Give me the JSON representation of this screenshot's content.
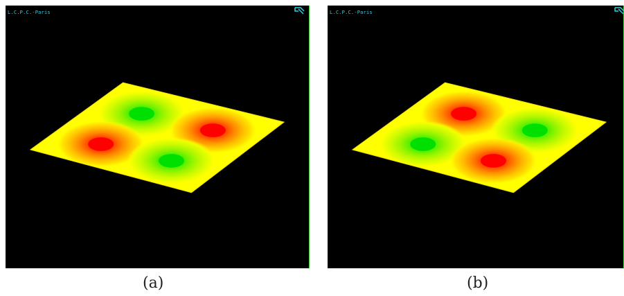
{
  "panels": [
    {
      "lab": "L.C.P.C.-Paris",
      "caption": "(a)",
      "icon": "window-corner-icon"
    },
    {
      "lab": "L.C.P.C.-Paris",
      "caption": "(b)",
      "icon": "window-corner-icon"
    }
  ],
  "colors": {
    "background": "#000000",
    "surface": "#ffff00",
    "high": "#ff0000",
    "low": "#00e000",
    "label": "#27d3e6"
  }
}
